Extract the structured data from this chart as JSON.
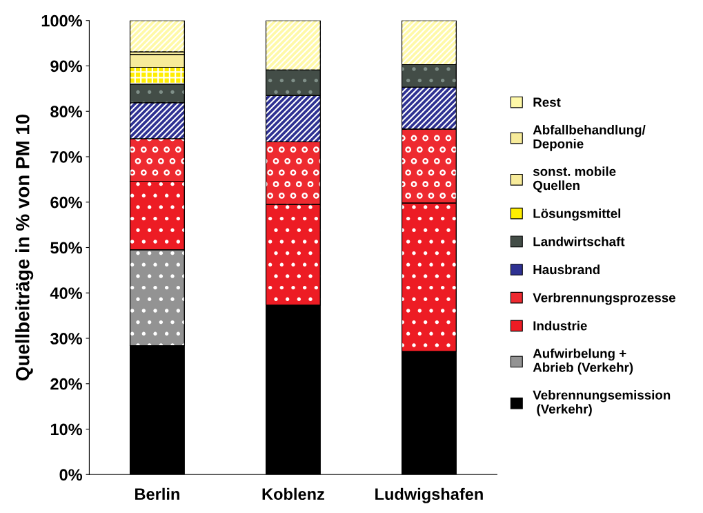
{
  "chart_data": {
    "type": "bar",
    "stacked": true,
    "ylabel": "Quellbeiträge in % von PM 10",
    "categories": [
      "Berlin",
      "Koblenz",
      "Ludwigshafen"
    ],
    "ylim": [
      0,
      100
    ],
    "yticks": [
      {
        "value": 0,
        "label": "0%"
      },
      {
        "value": 10,
        "label": "10%"
      },
      {
        "value": 20,
        "label": "20%"
      },
      {
        "value": 30,
        "label": "30%"
      },
      {
        "value": 40,
        "label": "40%"
      },
      {
        "value": 50,
        "label": "50%"
      },
      {
        "value": 60,
        "label": "60%"
      },
      {
        "value": 70,
        "label": "70%"
      },
      {
        "value": 80,
        "label": "80%"
      },
      {
        "value": 90,
        "label": "90%"
      },
      {
        "value": 100,
        "label": "100%"
      }
    ],
    "legend": "right",
    "grid": false,
    "series": [
      {
        "name": "Vebrennungsemission\n (Verkehr)",
        "color": "#000000",
        "values": [
          28.4,
          37.3,
          27.1
        ]
      },
      {
        "name": "Aufwirbelung +\nAbrieb (Verkehr)",
        "color": "#939393",
        "values": [
          21.1,
          null,
          null
        ]
      },
      {
        "name": "Industrie",
        "color": "#ed1c24",
        "values": [
          15.1,
          22.2,
          32.7
        ]
      },
      {
        "name": "Verbrennungsprozesse",
        "color": "#ee2a30",
        "values": [
          9.4,
          13.8,
          16.3
        ]
      },
      {
        "name": "Hausbrand",
        "color": "#2e3192",
        "values": [
          7.9,
          10.2,
          9.2
        ]
      },
      {
        "name": "Landwirtschaft",
        "color": "#434d47",
        "values": [
          4.1,
          5.6,
          5.0
        ]
      },
      {
        "name": "Lösungsmittel",
        "color": "#ffee00",
        "values": [
          3.7,
          null,
          null
        ]
      },
      {
        "name": "sonst. mobile\nQuellen",
        "color": "#f7eb9a",
        "values": [
          2.8,
          null,
          null
        ]
      },
      {
        "name": "Abfallbehandlung/\nDeponie",
        "color": "#f7eb9a",
        "values": [
          0.6,
          null,
          null
        ]
      },
      {
        "name": "Rest",
        "color": "#fff9a8",
        "values": [
          6.9,
          10.9,
          9.7
        ]
      }
    ]
  }
}
